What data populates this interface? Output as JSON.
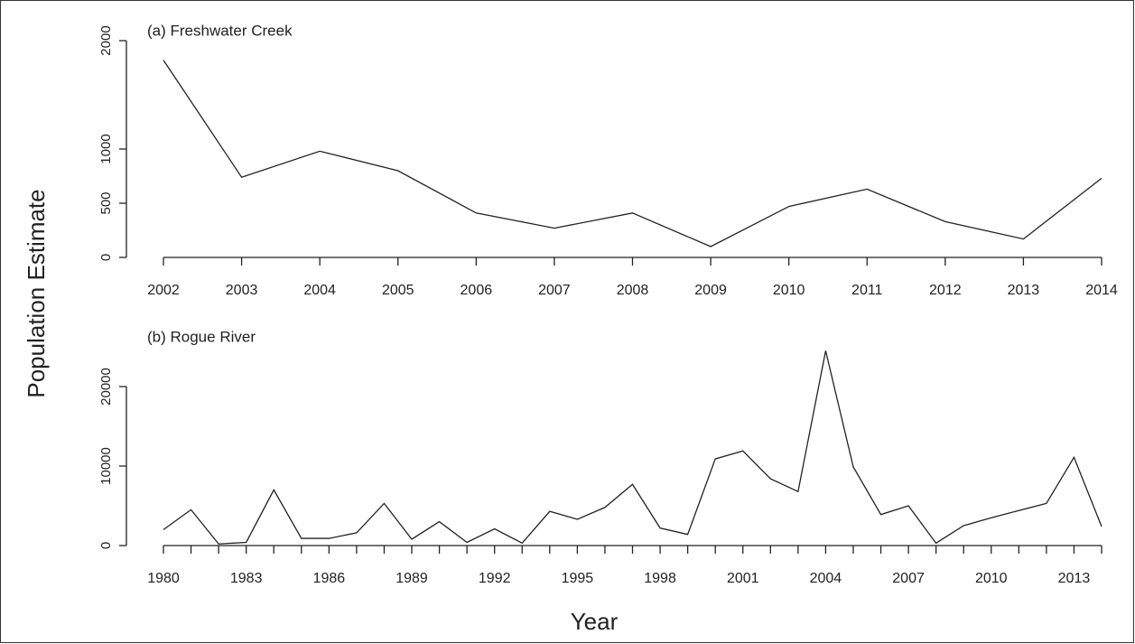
{
  "ylabel": "Population Estimate",
  "xlabel": "Year",
  "chart_data": [
    {
      "type": "line",
      "title": "(a) Freshwater Creek",
      "x": [
        2002,
        2003,
        2004,
        2005,
        2006,
        2007,
        2008,
        2009,
        2010,
        2011,
        2012,
        2013,
        2014
      ],
      "series": [
        {
          "color": "#222222",
          "values": [
            1820,
            740,
            980,
            800,
            410,
            270,
            410,
            100,
            470,
            630,
            330,
            170,
            730
          ]
        }
      ],
      "xlim": [
        2002,
        2014
      ],
      "xticks": [
        2002,
        2003,
        2004,
        2005,
        2006,
        2007,
        2008,
        2009,
        2010,
        2011,
        2012,
        2013,
        2014
      ],
      "ylim": [
        0,
        2000
      ],
      "yticks": [
        0,
        500,
        1000,
        2000
      ]
    },
    {
      "type": "line",
      "title": "(b) Rogue River",
      "x": [
        1980,
        1981,
        1982,
        1983,
        1984,
        1985,
        1986,
        1987,
        1988,
        1989,
        1990,
        1991,
        1992,
        1993,
        1994,
        1995,
        1996,
        1997,
        1998,
        1999,
        2000,
        2001,
        2002,
        2003,
        2004,
        2005,
        2006,
        2007,
        2008,
        2009,
        2010,
        2011,
        2012,
        2013,
        2014
      ],
      "series": [
        {
          "color": "#222222",
          "values": [
            2000,
            4500,
            200,
            400,
            7000,
            900,
            900,
            1600,
            5300,
            800,
            3000,
            400,
            2100,
            300,
            4300,
            3300,
            4800,
            7700,
            2200,
            1400,
            10900,
            11900,
            8400,
            6800,
            24500,
            9900,
            3900,
            5000,
            300,
            2500,
            3500,
            4400,
            5300,
            11100,
            2400
          ]
        }
      ],
      "xlim": [
        1980,
        2014
      ],
      "xticks": [
        1980,
        1983,
        1986,
        1989,
        1992,
        1995,
        1998,
        2001,
        2004,
        2007,
        2010,
        2013
      ],
      "minor_xticks": [
        1981,
        1982,
        1984,
        1985,
        1987,
        1988,
        1990,
        1991,
        1993,
        1994,
        1996,
        1997,
        1999,
        2000,
        2002,
        2003,
        2005,
        2006,
        2008,
        2009,
        2011,
        2012,
        2014
      ],
      "ylim": [
        0,
        25000
      ],
      "yticks": [
        0,
        10000,
        20000
      ]
    }
  ]
}
